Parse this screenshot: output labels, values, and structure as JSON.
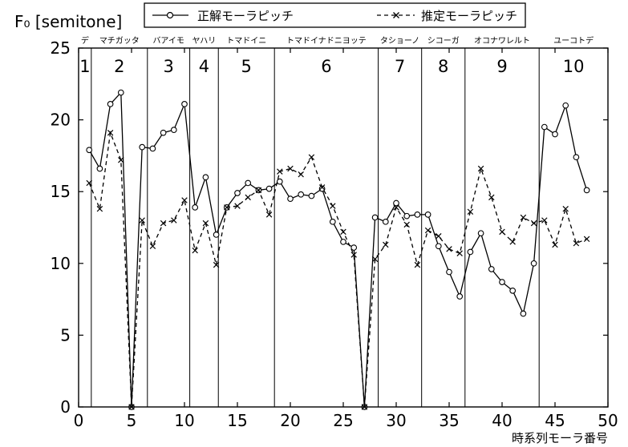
{
  "chart_data": {
    "type": "line",
    "ylabel": "F₀ [semitone]",
    "xlabel": "時系列モーラ番号",
    "xlim": [
      0,
      50
    ],
    "ylim": [
      0,
      25
    ],
    "xticks": [
      0,
      5,
      10,
      15,
      20,
      25,
      30,
      35,
      40,
      45,
      50
    ],
    "yticks": [
      0,
      5,
      10,
      15,
      20,
      25
    ],
    "legend_position": "top",
    "series": [
      {
        "name": "正解モーラピッチ",
        "style": "solid",
        "marker": "circle",
        "x": [
          1,
          2,
          3,
          4,
          5,
          6,
          7,
          8,
          9,
          10,
          11,
          12,
          13,
          14,
          15,
          16,
          17,
          18,
          19,
          20,
          21,
          22,
          23,
          24,
          25,
          26,
          27,
          28,
          29,
          30,
          31,
          32,
          33,
          34,
          35,
          36,
          37,
          38,
          39,
          40,
          41,
          42,
          43,
          44,
          45,
          46,
          47,
          48
        ],
        "y": [
          17.9,
          16.6,
          21.1,
          21.9,
          0,
          18.1,
          18.0,
          19.1,
          19.3,
          21.1,
          13.9,
          16.0,
          12.0,
          13.9,
          14.9,
          15.6,
          15.1,
          15.2,
          15.7,
          14.5,
          14.8,
          14.7,
          15.2,
          12.9,
          11.5,
          11.1,
          0,
          13.2,
          12.9,
          14.2,
          13.3,
          13.4,
          13.4,
          11.2,
          9.4,
          7.7,
          10.8,
          12.1,
          9.6,
          8.7,
          8.1,
          6.5,
          10.0,
          19.5,
          19.0,
          21.0,
          17.4,
          15.1
        ]
      },
      {
        "name": "推定モーラピッチ",
        "style": "dashed",
        "marker": "x",
        "x": [
          1,
          2,
          3,
          4,
          5,
          6,
          7,
          8,
          9,
          10,
          11,
          12,
          13,
          14,
          15,
          16,
          17,
          18,
          19,
          20,
          21,
          22,
          23,
          24,
          25,
          26,
          27,
          28,
          29,
          30,
          31,
          32,
          33,
          34,
          35,
          36,
          37,
          38,
          39,
          40,
          41,
          42,
          43,
          44,
          45,
          46,
          47,
          48
        ],
        "y": [
          15.6,
          13.8,
          19.1,
          17.2,
          0,
          13.0,
          11.2,
          12.8,
          13.0,
          14.4,
          10.9,
          12.8,
          9.9,
          13.9,
          14.0,
          14.6,
          15.1,
          13.4,
          16.4,
          16.6,
          16.2,
          17.4,
          15.3,
          14.0,
          12.2,
          10.6,
          0,
          10.3,
          11.3,
          13.9,
          12.7,
          9.9,
          12.3,
          11.9,
          11.0,
          10.7,
          13.6,
          16.6,
          14.6,
          12.2,
          11.5,
          13.2,
          12.8,
          13.0,
          11.3,
          13.8,
          11.4,
          11.7
        ]
      }
    ],
    "segments": [
      {
        "num": "1",
        "text": "デ",
        "start": 0,
        "end": 1.2
      },
      {
        "num": "2",
        "text": "マチガッタ",
        "start": 1.2,
        "end": 6.5
      },
      {
        "num": "3",
        "text": "バアイモ",
        "start": 6.5,
        "end": 10.5
      },
      {
        "num": "4",
        "text": "ヤハリ",
        "start": 10.5,
        "end": 13.2
      },
      {
        "num": "5",
        "text": "トマドイニ",
        "start": 13.2,
        "end": 18.5
      },
      {
        "num": "6",
        "text": "トマドイナドニヨッテ",
        "start": 18.5,
        "end": 28.3
      },
      {
        "num": "7",
        "text": "タショーノ",
        "start": 28.3,
        "end": 32.4
      },
      {
        "num": "8",
        "text": "シコーガ",
        "start": 32.4,
        "end": 36.5
      },
      {
        "num": "9",
        "text": "オコナワレルト",
        "start": 36.5,
        "end": 43.5
      },
      {
        "num": "10",
        "text": "ユーコトデ",
        "start": 43.5,
        "end": 50
      }
    ]
  }
}
